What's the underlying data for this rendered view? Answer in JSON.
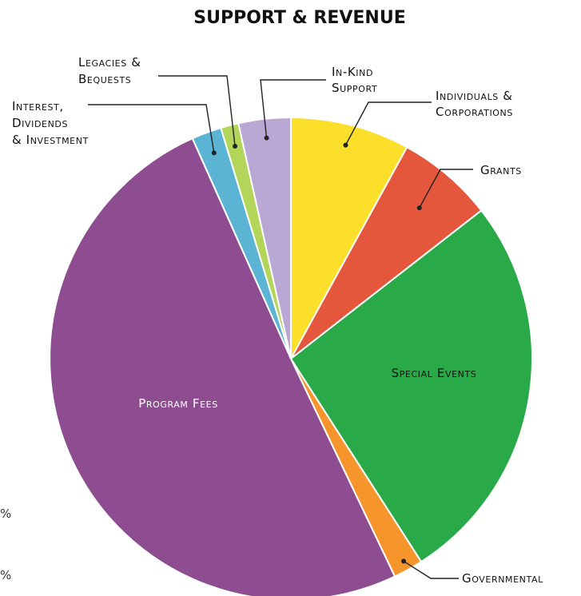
{
  "chart_data": {
    "type": "pie",
    "title": "SUPPORT & REVENUE",
    "slices": [
      {
        "label": "Individuals & Corporations",
        "value": 8.0,
        "color": "#fcdf2a"
      },
      {
        "label": "Grants",
        "value": 6.5,
        "color": "#e4573c"
      },
      {
        "label": "Special Events",
        "value": 26.5,
        "color": "#29a948"
      },
      {
        "label": "Governmental",
        "value": 2.0,
        "color": "#f5952b"
      },
      {
        "label": "Program Fees",
        "value": 50.5,
        "color": "#8e4d90"
      },
      {
        "label": "Interest, Dividends & Investment",
        "value": 2.0,
        "color": "#5bb4d3"
      },
      {
        "label": "Legacies & Bequests",
        "value": 1.2,
        "color": "#b3d55a"
      },
      {
        "label": "In-Kind Support",
        "value": 3.5,
        "color": "#b9a8d3"
      }
    ],
    "labels": {
      "individuals": [
        "Individuals &",
        "Corporations"
      ],
      "grants": [
        "Grants"
      ],
      "special_events": [
        "Special Events"
      ],
      "governmental": [
        "Governmental"
      ],
      "program_fees": [
        "Program Fees"
      ],
      "interest": [
        "Interest,",
        "Dividends",
        "& Investment"
      ],
      "legacies": [
        "Legacies &",
        "Bequests"
      ],
      "inkind": [
        "In-Kind",
        "Support"
      ]
    },
    "cut_off_fragments": [
      "%",
      "%"
    ]
  }
}
